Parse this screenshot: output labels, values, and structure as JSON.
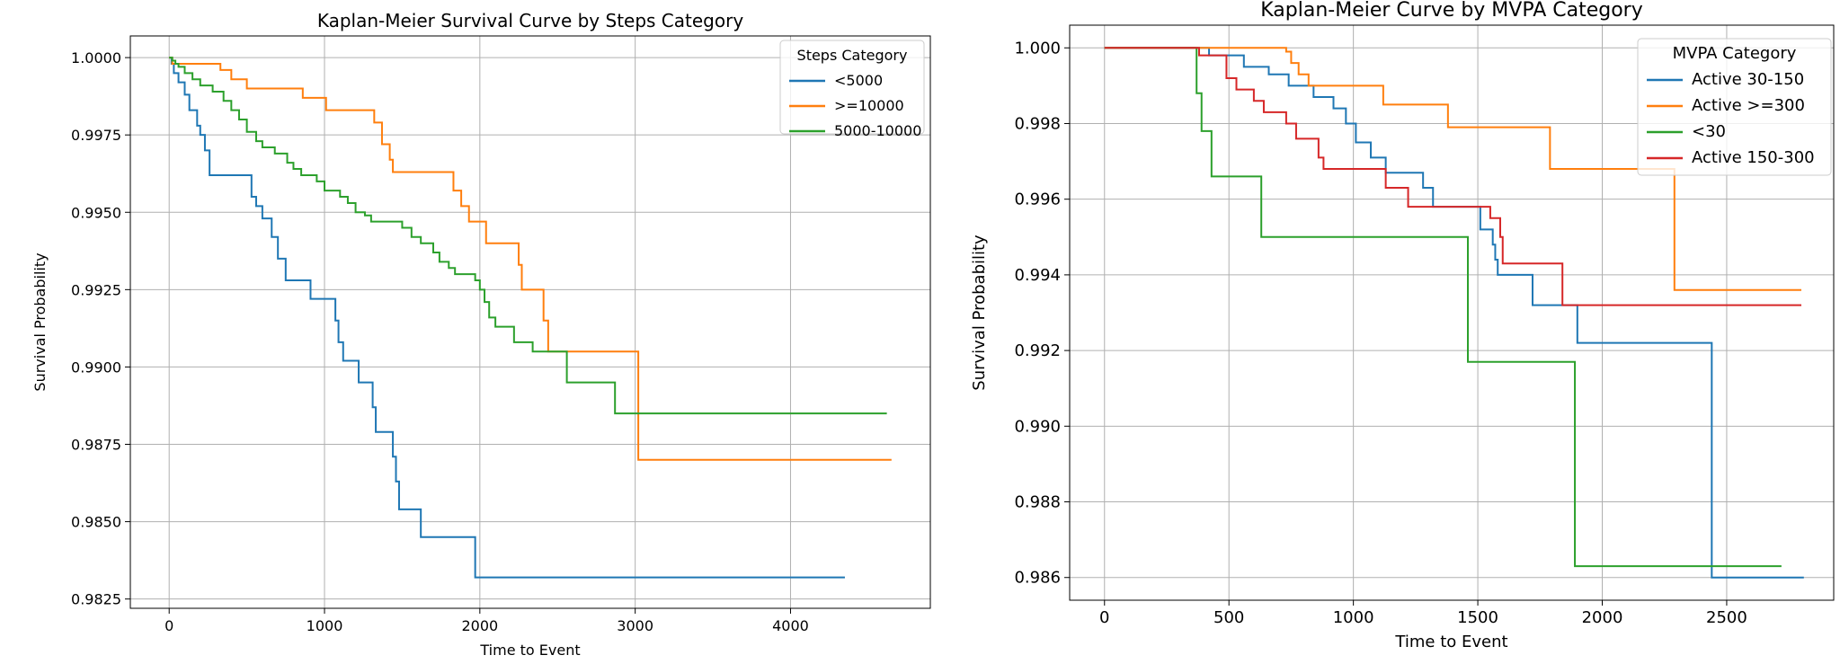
{
  "chart_data": [
    {
      "type": "line",
      "title": "Kaplan-Meier Survival Curve by Steps Category",
      "xlabel": "Time to Event",
      "ylabel": "Survival Probability",
      "xlim": [
        -250,
        4900
      ],
      "ylim": [
        0.9822,
        1.0007
      ],
      "xticks": [
        0,
        1000,
        2000,
        3000,
        4000
      ],
      "yticks": [
        0.9825,
        0.985,
        0.9875,
        0.99,
        0.9925,
        0.995,
        0.9975,
        1.0
      ],
      "ytick_labels": [
        "0.9825",
        "0.9850",
        "0.9875",
        "0.9900",
        "0.9925",
        "0.9950",
        "0.9975",
        "1.0000"
      ],
      "grid": true,
      "legend_title": "Steps Category",
      "legend_position": "top-right",
      "step": true,
      "series": [
        {
          "name": "<5000",
          "color": "#1f77b4",
          "points": [
            [
              0,
              1.0
            ],
            [
              15,
              0.9998
            ],
            [
              30,
              0.9995
            ],
            [
              60,
              0.9992
            ],
            [
              100,
              0.9988
            ],
            [
              130,
              0.9983
            ],
            [
              180,
              0.9978
            ],
            [
              200,
              0.9975
            ],
            [
              230,
              0.997
            ],
            [
              260,
              0.9962
            ],
            [
              530,
              0.9955
            ],
            [
              560,
              0.9952
            ],
            [
              600,
              0.9948
            ],
            [
              660,
              0.9942
            ],
            [
              700,
              0.9935
            ],
            [
              750,
              0.9928
            ],
            [
              900,
              0.9928
            ],
            [
              910,
              0.9922
            ],
            [
              1070,
              0.9915
            ],
            [
              1090,
              0.9908
            ],
            [
              1120,
              0.9902
            ],
            [
              1220,
              0.9895
            ],
            [
              1310,
              0.9887
            ],
            [
              1330,
              0.9879
            ],
            [
              1440,
              0.9871
            ],
            [
              1460,
              0.9863
            ],
            [
              1480,
              0.9854
            ],
            [
              1620,
              0.9845
            ],
            [
              1970,
              0.9832
            ],
            [
              4350,
              0.9832
            ]
          ]
        },
        {
          "name": ">=10000",
          "color": "#ff7f0e",
          "points": [
            [
              0,
              1.0
            ],
            [
              20,
              0.9998
            ],
            [
              330,
              0.9996
            ],
            [
              400,
              0.9993
            ],
            [
              500,
              0.999
            ],
            [
              860,
              0.9987
            ],
            [
              1010,
              0.9983
            ],
            [
              1320,
              0.9979
            ],
            [
              1370,
              0.9972
            ],
            [
              1420,
              0.9967
            ],
            [
              1440,
              0.9963
            ],
            [
              1830,
              0.9957
            ],
            [
              1880,
              0.9952
            ],
            [
              1930,
              0.9947
            ],
            [
              2040,
              0.994
            ],
            [
              2250,
              0.9933
            ],
            [
              2270,
              0.9925
            ],
            [
              2410,
              0.9915
            ],
            [
              2440,
              0.9905
            ],
            [
              3020,
              0.987
            ],
            [
              4650,
              0.987
            ]
          ]
        },
        {
          "name": "5000-10000",
          "color": "#2ca02c",
          "points": [
            [
              0,
              1.0
            ],
            [
              20,
              0.9999
            ],
            [
              40,
              0.9998
            ],
            [
              60,
              0.9997
            ],
            [
              100,
              0.9995
            ],
            [
              150,
              0.9993
            ],
            [
              200,
              0.9991
            ],
            [
              280,
              0.9989
            ],
            [
              350,
              0.9986
            ],
            [
              400,
              0.9983
            ],
            [
              450,
              0.998
            ],
            [
              500,
              0.9976
            ],
            [
              560,
              0.9973
            ],
            [
              600,
              0.9971
            ],
            [
              680,
              0.9969
            ],
            [
              760,
              0.9966
            ],
            [
              800,
              0.9964
            ],
            [
              850,
              0.9962
            ],
            [
              950,
              0.996
            ],
            [
              1000,
              0.9957
            ],
            [
              1100,
              0.9955
            ],
            [
              1150,
              0.9953
            ],
            [
              1200,
              0.995
            ],
            [
              1260,
              0.9949
            ],
            [
              1300,
              0.9947
            ],
            [
              1500,
              0.9945
            ],
            [
              1560,
              0.9942
            ],
            [
              1620,
              0.994
            ],
            [
              1700,
              0.9937
            ],
            [
              1740,
              0.9934
            ],
            [
              1800,
              0.9932
            ],
            [
              1840,
              0.993
            ],
            [
              1970,
              0.9928
            ],
            [
              2000,
              0.9925
            ],
            [
              2030,
              0.9921
            ],
            [
              2060,
              0.9916
            ],
            [
              2100,
              0.9913
            ],
            [
              2220,
              0.9908
            ],
            [
              2340,
              0.9905
            ],
            [
              2560,
              0.9895
            ],
            [
              2870,
              0.9885
            ],
            [
              4620,
              0.9885
            ]
          ]
        }
      ]
    },
    {
      "type": "line",
      "title": "Kaplan-Meier Curve by MVPA Category",
      "xlabel": "Time to Event",
      "ylabel": "Survival Probability",
      "xlim": [
        -140,
        2930
      ],
      "ylim": [
        0.9854,
        1.0006
      ],
      "xticks": [
        0,
        500,
        1000,
        1500,
        2000,
        2500
      ],
      "yticks": [
        0.986,
        0.988,
        0.99,
        0.992,
        0.994,
        0.996,
        0.998,
        1.0
      ],
      "ytick_labels": [
        "0.986",
        "0.988",
        "0.990",
        "0.992",
        "0.994",
        "0.996",
        "0.998",
        "1.000"
      ],
      "grid": true,
      "legend_title": "MVPA Category",
      "legend_position": "top-right",
      "step": true,
      "series": [
        {
          "name": "Active 30-150",
          "color": "#1f77b4",
          "points": [
            [
              0,
              1.0
            ],
            [
              420,
              0.9998
            ],
            [
              560,
              0.9995
            ],
            [
              660,
              0.9993
            ],
            [
              740,
              0.999
            ],
            [
              840,
              0.9987
            ],
            [
              920,
              0.9984
            ],
            [
              970,
              0.998
            ],
            [
              1010,
              0.9975
            ],
            [
              1070,
              0.9971
            ],
            [
              1130,
              0.9967
            ],
            [
              1280,
              0.9963
            ],
            [
              1320,
              0.9958
            ],
            [
              1510,
              0.9952
            ],
            [
              1560,
              0.9948
            ],
            [
              1570,
              0.9944
            ],
            [
              1580,
              0.994
            ],
            [
              1720,
              0.9932
            ],
            [
              1900,
              0.9922
            ],
            [
              2440,
              0.986
            ],
            [
              2810,
              0.986
            ]
          ]
        },
        {
          "name": "Active >=300",
          "color": "#ff7f0e",
          "points": [
            [
              0,
              1.0
            ],
            [
              730,
              0.9999
            ],
            [
              750,
              0.9996
            ],
            [
              780,
              0.9993
            ],
            [
              820,
              0.999
            ],
            [
              1120,
              0.9985
            ],
            [
              1380,
              0.9979
            ],
            [
              1790,
              0.9968
            ],
            [
              2290,
              0.9936
            ],
            [
              2800,
              0.9936
            ]
          ]
        },
        {
          "name": "<30",
          "color": "#2ca02c",
          "points": [
            [
              0,
              1.0
            ],
            [
              370,
              0.9988
            ],
            [
              390,
              0.9978
            ],
            [
              430,
              0.9966
            ],
            [
              630,
              0.995
            ],
            [
              1460,
              0.9917
            ],
            [
              1890,
              0.9863
            ],
            [
              2720,
              0.9863
            ]
          ]
        },
        {
          "name": "Active 150-300",
          "color": "#d62728",
          "points": [
            [
              0,
              1.0
            ],
            [
              380,
              0.9998
            ],
            [
              490,
              0.9992
            ],
            [
              530,
              0.9989
            ],
            [
              600,
              0.9986
            ],
            [
              640,
              0.9983
            ],
            [
              730,
              0.998
            ],
            [
              770,
              0.9976
            ],
            [
              860,
              0.9971
            ],
            [
              880,
              0.9968
            ],
            [
              1130,
              0.9963
            ],
            [
              1220,
              0.9958
            ],
            [
              1550,
              0.9955
            ],
            [
              1590,
              0.995
            ],
            [
              1600,
              0.9943
            ],
            [
              1840,
              0.9932
            ],
            [
              2800,
              0.9932
            ]
          ]
        }
      ]
    }
  ]
}
